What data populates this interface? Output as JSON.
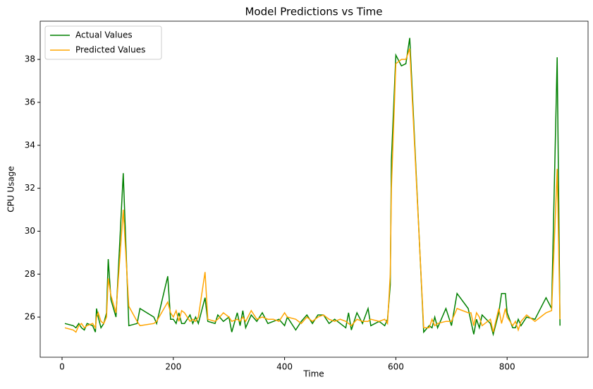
{
  "chart_data": {
    "type": "line",
    "title": "Model Predictions vs Time",
    "xlabel": "Time",
    "ylabel": "CPU Usage",
    "x": [
      5,
      20,
      25,
      30,
      35,
      40,
      45,
      55,
      60,
      62,
      65,
      70,
      75,
      80,
      83,
      88,
      97,
      110,
      120,
      135,
      140,
      165,
      170,
      190,
      195,
      200,
      205,
      210,
      215,
      220,
      230,
      235,
      240,
      245,
      257,
      262,
      275,
      280,
      290,
      300,
      305,
      315,
      320,
      325,
      330,
      340,
      350,
      360,
      370,
      380,
      390,
      400,
      405,
      420,
      430,
      440,
      450,
      460,
      470,
      480,
      490,
      500,
      510,
      515,
      520,
      530,
      540,
      550,
      555,
      570,
      580,
      585,
      590,
      592,
      600,
      610,
      618,
      625,
      650,
      660,
      665,
      670,
      675,
      690,
      700,
      710,
      730,
      735,
      740,
      745,
      750,
      755,
      770,
      775,
      785,
      790,
      797,
      800,
      810,
      815,
      820,
      825,
      835,
      850,
      870,
      880,
      890,
      895
    ],
    "series": [
      {
        "name": "Actual Values",
        "color": "#008000",
        "values": [
          25.7,
          25.6,
          25.5,
          25.7,
          25.5,
          25.4,
          25.7,
          25.6,
          25.3,
          26.4,
          26.0,
          25.5,
          25.7,
          26.2,
          28.7,
          26.8,
          26.0,
          32.7,
          25.6,
          25.7,
          26.4,
          26.0,
          25.7,
          27.9,
          25.9,
          25.9,
          25.7,
          26.2,
          25.7,
          25.7,
          26.1,
          25.7,
          26.0,
          25.7,
          26.9,
          25.8,
          25.7,
          26.1,
          25.8,
          26.0,
          25.3,
          26.2,
          25.6,
          26.3,
          25.5,
          26.1,
          25.8,
          26.2,
          25.7,
          25.8,
          25.9,
          25.6,
          26.0,
          25.4,
          25.8,
          26.1,
          25.7,
          26.1,
          26.1,
          25.7,
          25.9,
          25.7,
          25.5,
          26.2,
          25.4,
          26.2,
          25.7,
          26.4,
          25.6,
          25.8,
          25.6,
          25.9,
          27.5,
          33.3,
          38.2,
          37.7,
          37.8,
          39.0,
          25.3,
          25.6,
          25.5,
          26.0,
          25.5,
          26.4,
          25.6,
          27.1,
          26.4,
          25.8,
          25.2,
          25.9,
          25.5,
          26.1,
          25.7,
          25.2,
          26.2,
          27.1,
          27.1,
          26.2,
          25.5,
          25.5,
          25.9,
          25.6,
          26.0,
          25.9,
          26.9,
          26.4,
          38.1,
          25.6
        ]
      },
      {
        "name": "Predicted Values",
        "color": "#ffa500",
        "values": [
          25.5,
          25.4,
          25.3,
          25.6,
          25.7,
          25.5,
          25.6,
          25.7,
          25.5,
          26.0,
          26.2,
          25.8,
          25.7,
          26.0,
          27.8,
          27.0,
          26.2,
          31.0,
          26.5,
          25.8,
          25.6,
          25.7,
          25.8,
          26.7,
          26.2,
          26.0,
          26.3,
          25.8,
          26.3,
          26.2,
          25.8,
          25.9,
          25.8,
          26.0,
          28.1,
          25.9,
          25.8,
          25.9,
          26.2,
          26.0,
          25.8,
          25.9,
          25.8,
          26.0,
          25.8,
          26.3,
          25.9,
          26.0,
          25.9,
          25.9,
          25.8,
          26.2,
          26.0,
          25.9,
          25.7,
          26.0,
          25.8,
          26.0,
          26.1,
          25.9,
          25.8,
          25.9,
          25.8,
          25.7,
          25.6,
          25.9,
          25.8,
          25.8,
          25.9,
          25.8,
          25.9,
          25.7,
          28.0,
          32.0,
          37.8,
          38.0,
          38.0,
          38.5,
          25.5,
          25.5,
          25.9,
          25.6,
          25.7,
          25.8,
          25.8,
          26.4,
          26.2,
          26.2,
          25.6,
          26.2,
          26.0,
          25.6,
          25.9,
          25.3,
          26.4,
          25.7,
          26.4,
          26.0,
          25.6,
          25.8,
          25.4,
          25.8,
          26.1,
          25.8,
          26.2,
          26.3,
          32.9,
          25.9
        ]
      }
    ],
    "xlim": [
      -39.3,
      945.5
    ],
    "ylim": [
      24.13,
      39.78
    ],
    "xticks": [
      0,
      200,
      400,
      600,
      800
    ],
    "yticks": [
      26,
      28,
      30,
      32,
      34,
      36,
      38
    ],
    "legend": "upper left"
  }
}
